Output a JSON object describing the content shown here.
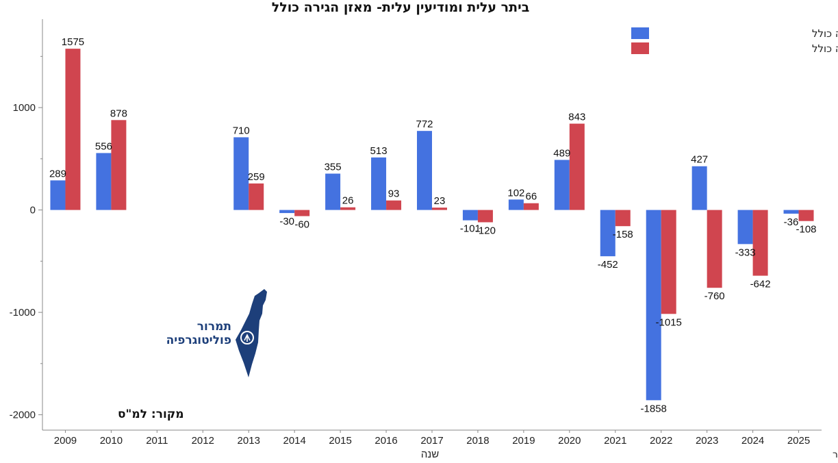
{
  "chart_data": {
    "type": "bar",
    "title": "ביתר עלית ומודיעין עלית- מאזן הגירה כולל",
    "xlabel": "שנה",
    "ylabel": "",
    "categories": [
      "2009",
      "2010",
      "2011",
      "2012",
      "2013",
      "2014",
      "2015",
      "2016",
      "2017",
      "2018",
      "2019",
      "2020",
      "2021",
      "2022",
      "2023",
      "2024",
      "2025"
    ],
    "ylim": [
      -2150,
      1850
    ],
    "yticks": [
      -2000,
      -1000,
      0,
      1000
    ],
    "series": [
      {
        "name": "ביתר עילית מאזן הגירה כולל",
        "color": "#4472e0",
        "values": [
          289,
          556,
          null,
          null,
          710,
          -30,
          355,
          513,
          772,
          -101,
          102,
          489,
          -452,
          -1858,
          427,
          -333,
          -36
        ]
      },
      {
        "name": "מודיעין עילית מאזן הגירה כולל",
        "color": "#d0454f",
        "values": [
          1575,
          878,
          null,
          null,
          259,
          -60,
          26,
          93,
          23,
          -120,
          66,
          843,
          -158,
          -1015,
          -760,
          -642,
          -108
        ]
      }
    ],
    "legend_position": "top-right",
    "grid": false
  },
  "source": "מקור: למ\"ס",
  "logo": {
    "line1": "תמרור",
    "line2": "פוליטוגרפיה"
  },
  "period_note": "ינואר- פברואר"
}
